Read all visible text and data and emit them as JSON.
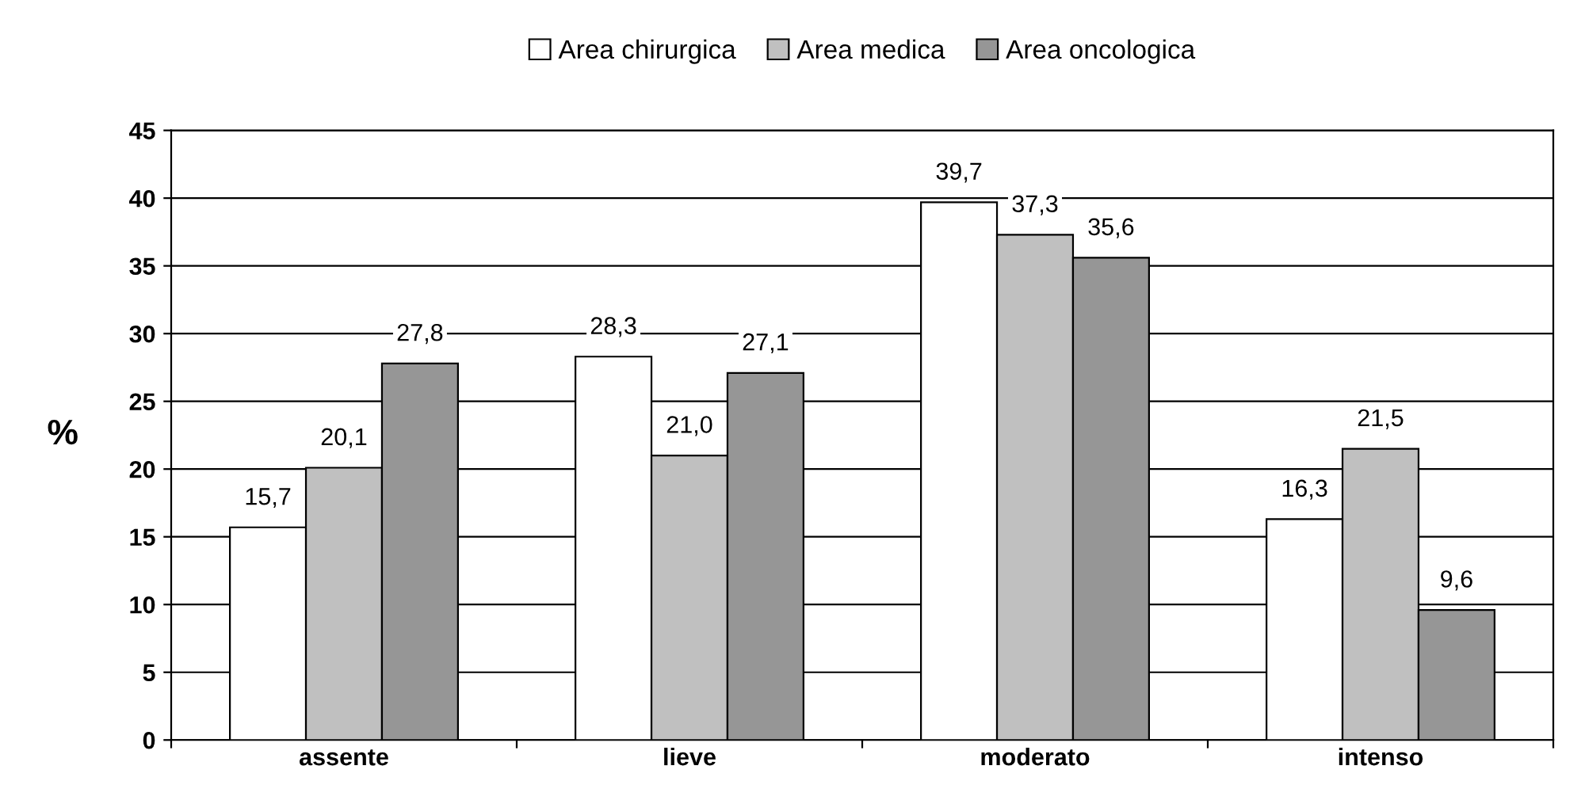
{
  "chart_data": {
    "type": "bar",
    "ylabel": "%",
    "categories": [
      "assente",
      "lieve",
      "moderato",
      "intenso"
    ],
    "series": [
      {
        "name": "Area chirurgica",
        "color": "#ffffff",
        "values": [
          15.7,
          28.3,
          39.7,
          16.3
        ],
        "value_labels": [
          "15,7",
          "28,3",
          "39,7",
          "16,3"
        ]
      },
      {
        "name": "Area medica",
        "color": "#c0c0c0",
        "values": [
          20.1,
          21.0,
          37.3,
          21.5
        ],
        "value_labels": [
          "20,1",
          "21,0",
          "37,3",
          "21,5"
        ]
      },
      {
        "name": "Area oncologica",
        "color": "#969696",
        "values": [
          27.8,
          27.1,
          35.6,
          9.6
        ],
        "value_labels": [
          "27,8",
          "27,1",
          "35,6",
          "9,6"
        ]
      }
    ],
    "ylim": [
      0,
      45
    ],
    "yticks": [
      0,
      5,
      10,
      15,
      20,
      25,
      30,
      35,
      40,
      45
    ],
    "grid": "y",
    "legend": "top"
  }
}
